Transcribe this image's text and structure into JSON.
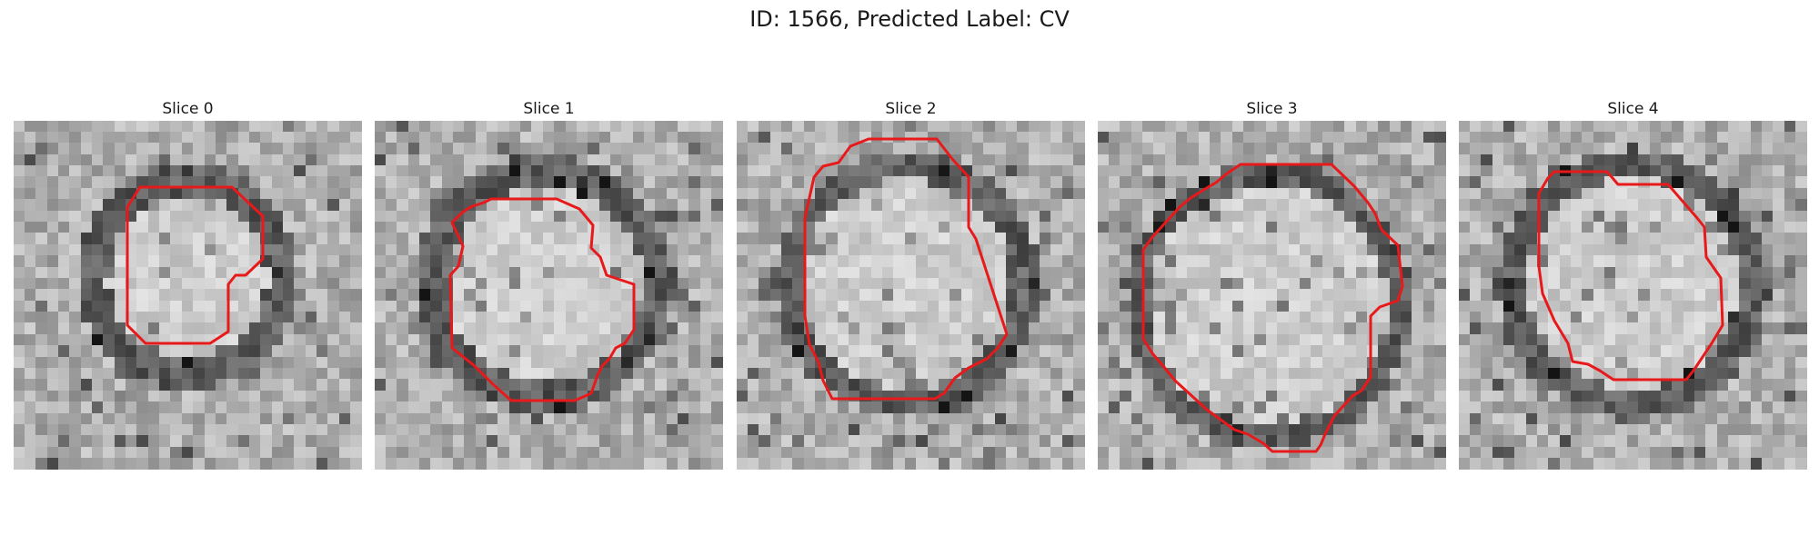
{
  "figure": {
    "title": "ID: 1566, Predicted Label: CV"
  },
  "slices": [
    {
      "title": "Slice 0",
      "outline_color": "#e8191b"
    },
    {
      "title": "Slice 1",
      "outline_color": "#e8191b"
    },
    {
      "title": "Slice 2",
      "outline_color": "#e8191b"
    },
    {
      "title": "Slice 3",
      "outline_color": "#e8191b"
    },
    {
      "title": "Slice 4",
      "outline_color": "#e8191b"
    }
  ]
}
